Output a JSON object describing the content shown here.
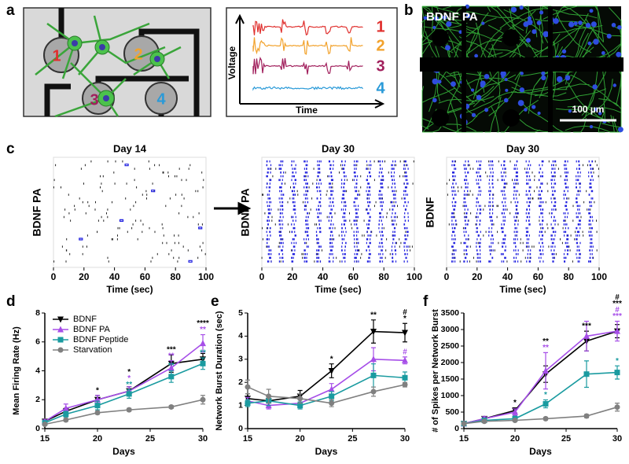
{
  "panel_labels": [
    "a",
    "b",
    "c",
    "d",
    "e",
    "f"
  ],
  "diagram": {
    "electrodes": [
      "1",
      "2",
      "3",
      "4"
    ],
    "ylabel": "Voltage",
    "xlabel": "Time",
    "traces": [
      {
        "label": "1",
        "color": "#e0302e"
      },
      {
        "label": "2",
        "color": "#f2a22c"
      },
      {
        "label": "3",
        "color": "#a11f5c"
      },
      {
        "label": "4",
        "color": "#2a9ad8"
      }
    ]
  },
  "image": {
    "label": "BDNF PA",
    "scale_bar": "100 µm"
  },
  "chart_data": [
    {
      "type": "raster",
      "title": "Day 14",
      "ylabel": "BDNF PA",
      "xlabel": "Time (sec)",
      "xlim": [
        0,
        100
      ],
      "xticks": [
        0,
        20,
        40,
        60,
        80,
        100
      ]
    },
    {
      "type": "raster",
      "title": "Day 30",
      "ylabel": "BDNF PA",
      "xlabel": "Time (sec)",
      "xlim": [
        0,
        100
      ],
      "xticks": [
        0,
        20,
        40,
        60,
        80,
        100
      ]
    },
    {
      "type": "raster",
      "title": "Day 30",
      "ylabel": "BDNF",
      "xlabel": "Time (sec)",
      "xlim": [
        0,
        100
      ],
      "xticks": [
        0,
        20,
        40,
        60,
        80,
        100
      ]
    },
    {
      "type": "line",
      "ylabel": "Mean Firing Rate (Hz)",
      "xlabel": "Days",
      "x": [
        15,
        17,
        20,
        23,
        27,
        30
      ],
      "xlim": [
        15,
        30
      ],
      "xticks": [
        15,
        20,
        25,
        30
      ],
      "ylim": [
        0,
        8
      ],
      "yticks": [
        0,
        2,
        4,
        6,
        8
      ],
      "legend": "upper left",
      "series": [
        {
          "name": "BDNF",
          "color": "#000000",
          "marker": "triangle-down",
          "values": [
            0.5,
            1.2,
            2.0,
            2.6,
            4.5,
            4.8
          ],
          "errors": [
            0.1,
            0.2,
            0.3,
            0.3,
            0.6,
            0.4
          ]
        },
        {
          "name": "BDNF PA",
          "color": "#a64ee8",
          "marker": "triangle-up",
          "values": [
            0.5,
            1.4,
            2.0,
            2.6,
            4.2,
            5.9
          ],
          "errors": [
            0.1,
            0.3,
            0.3,
            0.3,
            0.5,
            0.6
          ]
        },
        {
          "name": "BDNF Peptide",
          "color": "#1a9ba0",
          "marker": "square",
          "values": [
            0.4,
            1.0,
            1.6,
            2.4,
            3.6,
            4.5
          ],
          "errors": [
            0.1,
            0.2,
            0.3,
            0.3,
            0.4,
            0.4
          ]
        },
        {
          "name": "Starvation",
          "color": "#808080",
          "marker": "circle",
          "values": [
            0.3,
            0.6,
            1.1,
            1.3,
            1.5,
            2.0
          ],
          "errors": [
            0.05,
            0.1,
            0.1,
            0.1,
            0.1,
            0.3
          ]
        }
      ],
      "annotations": [
        {
          "x": 20,
          "labels": [
            {
              "text": "*",
              "color": "#000000"
            }
          ]
        },
        {
          "x": 23,
          "labels": [
            {
              "text": "**",
              "color": "#1a9ba0"
            },
            {
              "text": "*",
              "color": "#a64ee8"
            },
            {
              "text": "*",
              "color": "#000000"
            }
          ]
        },
        {
          "x": 27,
          "labels": [
            {
              "text": "**",
              "color": "#1a9ba0"
            },
            {
              "text": "**",
              "color": "#a64ee8"
            },
            {
              "text": "***",
              "color": "#000000"
            }
          ]
        },
        {
          "x": 30,
          "labels": [
            {
              "text": "**",
              "color": "#1a9ba0"
            },
            {
              "text": "**",
              "color": "#a64ee8"
            },
            {
              "text": "****",
              "color": "#000000"
            }
          ]
        }
      ]
    },
    {
      "type": "line",
      "ylabel": "Network Burst Duration (sec)",
      "xlabel": "Days",
      "x": [
        15,
        17,
        20,
        23,
        27,
        30
      ],
      "xlim": [
        15,
        30
      ],
      "xticks": [
        15,
        20,
        25,
        30
      ],
      "ylim": [
        0,
        5
      ],
      "yticks": [
        0,
        1,
        2,
        3,
        4,
        5
      ],
      "series": [
        {
          "color": "#000000",
          "marker": "triangle-down",
          "values": [
            1.3,
            1.2,
            1.4,
            2.5,
            4.2,
            4.15
          ],
          "errors": [
            0.2,
            0.2,
            0.25,
            0.3,
            0.5,
            0.4
          ]
        },
        {
          "color": "#a64ee8",
          "marker": "triangle-up",
          "values": [
            1.2,
            1.0,
            1.1,
            1.7,
            3.0,
            2.95
          ],
          "errors": [
            0.15,
            0.15,
            0.2,
            0.25,
            0.5,
            0.15
          ]
        },
        {
          "color": "#1a9ba0",
          "marker": "square",
          "values": [
            1.1,
            1.2,
            1.0,
            1.4,
            2.3,
            2.2
          ],
          "errors": [
            0.15,
            0.2,
            0.15,
            0.2,
            0.5,
            0.25
          ]
        },
        {
          "color": "#808080",
          "marker": "circle",
          "values": [
            1.8,
            1.4,
            1.3,
            1.1,
            1.6,
            1.9
          ],
          "errors": [
            0.3,
            0.3,
            0.2,
            0.15,
            0.2,
            0.1
          ]
        }
      ],
      "annotations": [
        {
          "x": 23,
          "labels": [
            {
              "text": "*",
              "color": "#000000"
            }
          ]
        },
        {
          "x": 27,
          "labels": [
            {
              "text": "**",
              "color": "#000000"
            }
          ]
        },
        {
          "x": 30,
          "labels": [
            {
              "text": "#",
              "color": "#a64ee8"
            },
            {
              "text": "*",
              "color": "#000000"
            },
            {
              "text": "#",
              "color": "#000000"
            }
          ]
        }
      ]
    },
    {
      "type": "line",
      "ylabel": "# of Spikes per Network Burst",
      "xlabel": "Days",
      "x": [
        15,
        17,
        20,
        23,
        27,
        30
      ],
      "xlim": [
        15,
        30
      ],
      "xticks": [
        15,
        20,
        25,
        30
      ],
      "ylim": [
        0,
        3500
      ],
      "yticks": [
        0,
        500,
        1000,
        1500,
        2000,
        2500,
        3000,
        3500
      ],
      "series": [
        {
          "color": "#000000",
          "marker": "triangle-down",
          "values": [
            150,
            300,
            550,
            1650,
            2650,
            2950
          ],
          "errors": [
            30,
            50,
            80,
            250,
            300,
            200
          ]
        },
        {
          "color": "#a64ee8",
          "marker": "triangle-up",
          "values": [
            150,
            300,
            500,
            1750,
            2800,
            2950
          ],
          "errors": [
            30,
            60,
            100,
            550,
            450,
            300
          ]
        },
        {
          "color": "#1a9ba0",
          "marker": "square",
          "values": [
            150,
            250,
            300,
            750,
            1650,
            1700
          ],
          "errors": [
            20,
            50,
            80,
            120,
            400,
            200
          ]
        },
        {
          "color": "#808080",
          "marker": "circle",
          "values": [
            150,
            220,
            250,
            300,
            380,
            650
          ],
          "errors": [
            20,
            30,
            30,
            40,
            50,
            120
          ]
        }
      ],
      "annotations": [
        {
          "x": 20,
          "labels": [
            {
              "text": "*",
              "color": "#000000"
            }
          ]
        },
        {
          "x": 23,
          "labels": [
            {
              "text": "*",
              "color": "#1a9ba0"
            },
            {
              "text": "**",
              "color": "#a64ee8"
            },
            {
              "text": "**",
              "color": "#000000"
            }
          ]
        },
        {
          "x": 27,
          "labels": [
            {
              "text": "***",
              "color": "#000000"
            }
          ]
        },
        {
          "x": 30,
          "labels": [
            {
              "text": "*",
              "color": "#1a9ba0"
            },
            {
              "text": "***",
              "color": "#a64ee8"
            },
            {
              "text": "#",
              "color": "#a64ee8"
            },
            {
              "text": "***",
              "color": "#000000"
            },
            {
              "text": "#",
              "color": "#000000"
            }
          ]
        }
      ]
    }
  ]
}
